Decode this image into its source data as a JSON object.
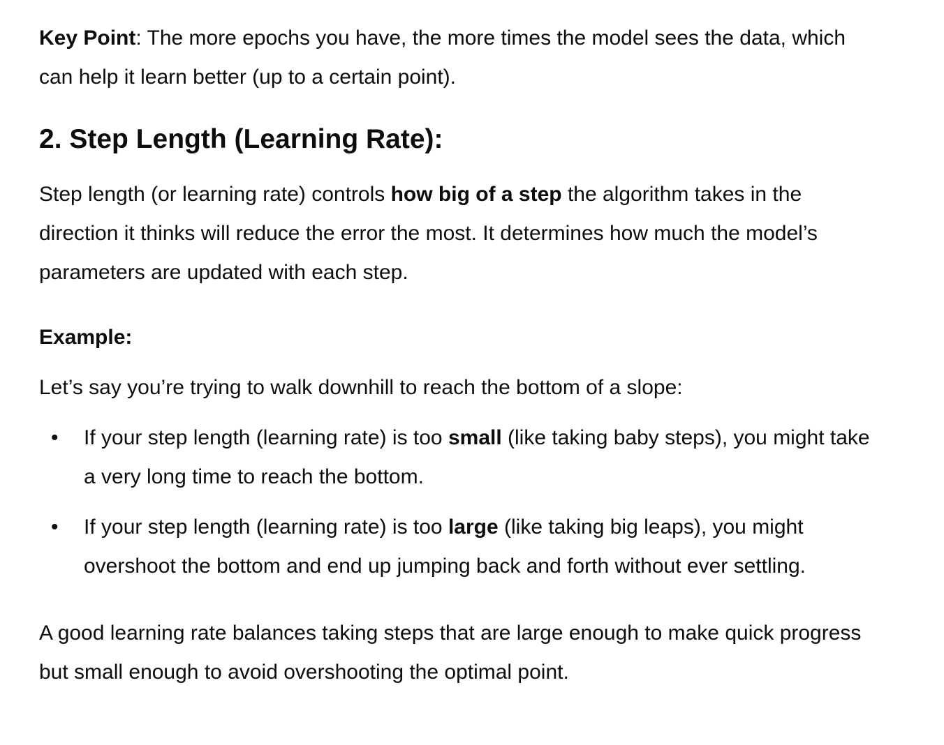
{
  "key_point": {
    "label": "Key Point",
    "text": ": The more epochs you have, the more times the model sees the data, which can help it learn better (up to a certain point)."
  },
  "section": {
    "heading": "2. Step Length (Learning Rate):",
    "description": {
      "before": "Step length (or learning rate) controls ",
      "bold": "how big of a step",
      "after": " the algorithm takes in the direction it thinks will reduce the error the most. It determines how much the model’s parameters are updated with each step."
    }
  },
  "example": {
    "heading": "Example:",
    "intro": "Let’s say you’re trying to walk downhill to reach the bottom of a slope:",
    "bullets": [
      {
        "before": "If your step length (learning rate) is too ",
        "bold": "small",
        "after": " (like taking baby steps), you might take a very long time to reach the bottom."
      },
      {
        "before": "If your step length (learning rate) is too ",
        "bold": "large",
        "after": " (like taking big leaps), you might overshoot the bottom and end up jumping back and forth without ever settling."
      }
    ],
    "bullet_glyph": "•"
  },
  "closing": "A good learning rate balances taking steps that are large enough to make quick progress but small enough to avoid overshooting the optimal point."
}
